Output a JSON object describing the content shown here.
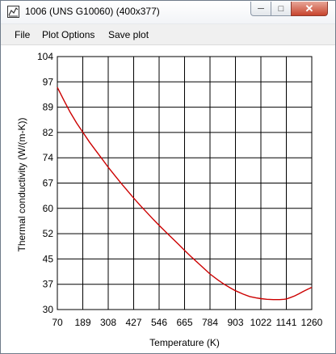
{
  "window": {
    "title": "1006 (UNS G10060) (400x377)",
    "icon": "chart-icon",
    "min_symbol": "─",
    "max_symbol": "□",
    "close_symbol": "✕"
  },
  "menu": {
    "file": "File",
    "plot_options": "Plot Options",
    "save_plot": "Save plot"
  },
  "chart_data": {
    "type": "line",
    "title": "",
    "xlabel": "Temperature (K)",
    "ylabel": "Thermal conductivity (W/(m-K))",
    "xlim": [
      70,
      1260
    ],
    "ylim": [
      30,
      104
    ],
    "x_ticks": [
      70,
      189,
      308,
      427,
      546,
      665,
      784,
      903,
      1022,
      1141,
      1260
    ],
    "y_ticks": [
      30,
      37,
      45,
      52,
      60,
      67,
      74,
      82,
      89,
      97,
      104
    ],
    "grid": true,
    "line_color": "#cc0000",
    "series": [
      {
        "x": [
          70,
          100,
          130,
          160,
          189,
          220,
          250,
          280,
          308,
          340,
          370,
          400,
          427,
          460,
          490,
          520,
          546,
          580,
          610,
          640,
          665,
          700,
          730,
          760,
          784,
          820,
          850,
          880,
          903,
          940,
          970,
          1000,
          1022,
          1050,
          1080,
          1110,
          1130,
          1141,
          1160,
          1180,
          1200,
          1220,
          1240,
          1260
        ],
        "y": [
          95,
          91.3,
          87.7,
          84.6,
          81.9,
          79.0,
          76.5,
          74.0,
          71.6,
          69.1,
          66.8,
          64.6,
          62.6,
          60.3,
          58.3,
          56.3,
          54.6,
          52.5,
          50.7,
          48.9,
          47.3,
          45.2,
          43.5,
          41.8,
          40.4,
          38.7,
          37.4,
          36.3,
          35.5,
          34.5,
          33.8,
          33.4,
          33.2,
          33.0,
          32.9,
          32.9,
          33.0,
          33.1,
          33.5,
          34.0,
          34.6,
          35.3,
          35.9,
          36.5
        ]
      }
    ]
  }
}
